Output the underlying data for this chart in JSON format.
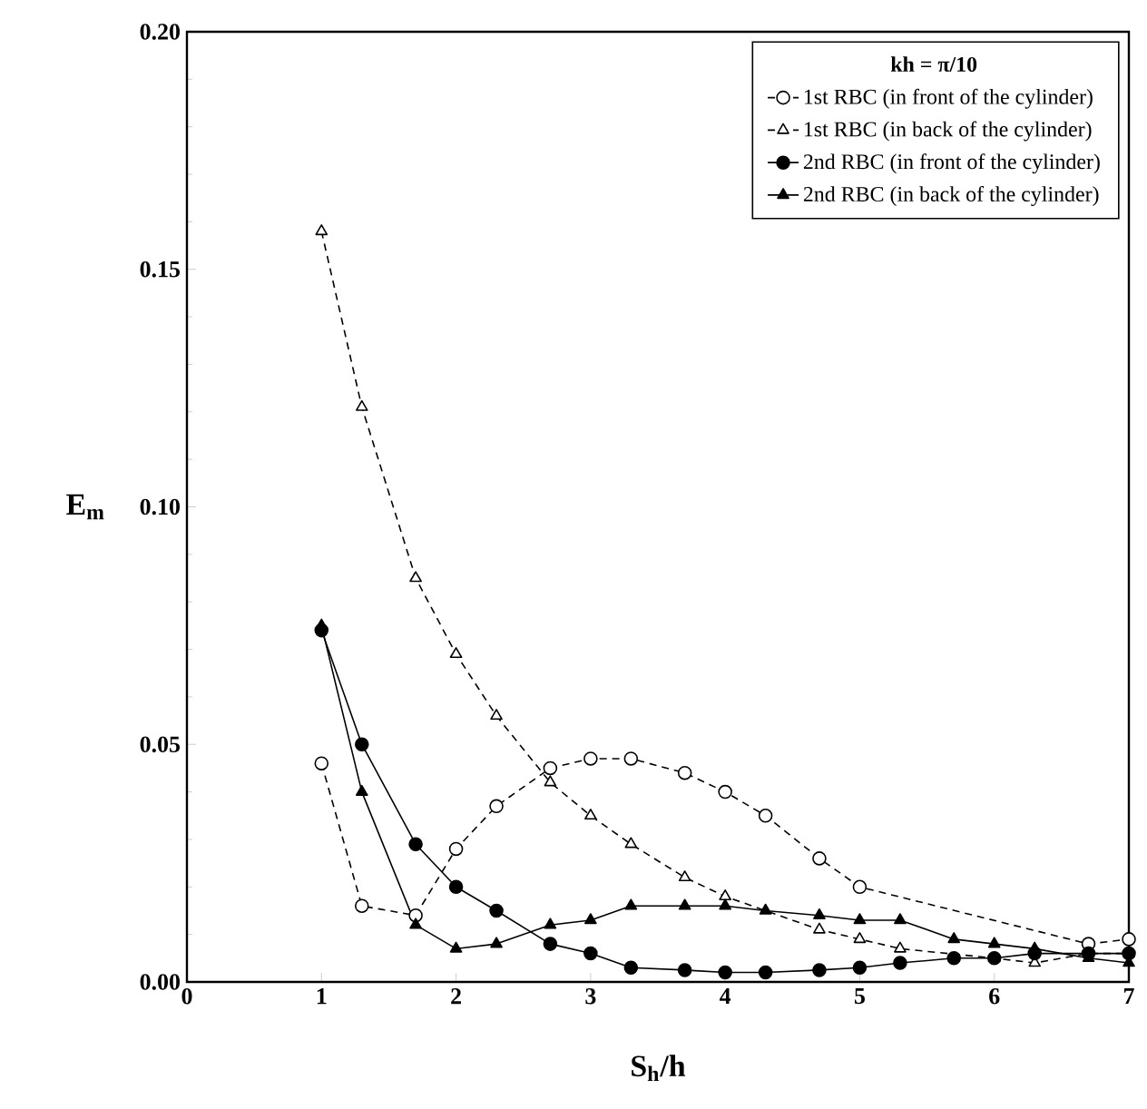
{
  "chart_data": {
    "type": "line",
    "xlabel": "S$_{h}$/h",
    "ylabel": "E$_{m}$",
    "legend_title": "kh = π/10",
    "legend": "top right",
    "grid": false,
    "xlim": [
      0,
      7
    ],
    "ylim": [
      0,
      0.2
    ],
    "xticks": [
      0,
      1,
      2,
      3,
      4,
      5,
      6,
      7
    ],
    "yticks": [
      {
        "value": 0,
        "label": "0.00"
      },
      {
        "value": 0.05,
        "label": "0.05"
      },
      {
        "value": 0.1,
        "label": "0.10"
      },
      {
        "value": 0.15,
        "label": "0.15"
      },
      {
        "value": 0.2,
        "label": "0.20"
      }
    ],
    "series": [
      {
        "name": "1st RBC (in front of the cylinder)",
        "color": "#000000",
        "marker": "circle",
        "line_style": "dashed",
        "x": [
          1,
          1.3,
          1.7,
          2,
          2.3,
          2.7,
          3,
          3.3,
          3.7,
          4,
          4.3,
          4.7,
          5,
          6.7,
          7
        ],
        "values": [
          0.046,
          0.016,
          0.014,
          0.028,
          0.037,
          0.045,
          0.047,
          0.047,
          0.044,
          0.04,
          0.035,
          0.026,
          0.02,
          0.008,
          0.009
        ]
      },
      {
        "name": "1st RBC (in back of the cylinder)",
        "color": "#000000",
        "marker": "triangle",
        "line_style": "dashed",
        "x": [
          1,
          1.3,
          1.7,
          2,
          2.3,
          2.7,
          3,
          3.3,
          3.7,
          4,
          4.7,
          5,
          5.3,
          6,
          6.3,
          6.7,
          7
        ],
        "values": [
          0.158,
          0.121,
          0.085,
          0.069,
          0.056,
          0.042,
          0.035,
          0.029,
          0.022,
          0.018,
          0.011,
          0.009,
          0.007,
          0.005,
          0.004,
          0.006,
          0.006
        ]
      },
      {
        "name": "2nd RBC (in front of the cylinder)",
        "color": "#000000",
        "marker": "circle",
        "line_style": "solid",
        "x": [
          1,
          1.3,
          1.7,
          2,
          2.3,
          2.7,
          3,
          3.3,
          3.7,
          4,
          4.3,
          4.7,
          5,
          5.3,
          5.7,
          6,
          6.3,
          6.7,
          7
        ],
        "values": [
          0.074,
          0.05,
          0.029,
          0.02,
          0.015,
          0.008,
          0.006,
          0.003,
          0.0025,
          0.002,
          0.002,
          0.0025,
          0.003,
          0.004,
          0.005,
          0.005,
          0.006,
          0.006,
          0.006
        ]
      },
      {
        "name": "2nd RBC (in back of the cylinder)",
        "color": "#000000",
        "marker": "triangle",
        "line_style": "solid",
        "x": [
          1,
          1.3,
          1.7,
          2,
          2.3,
          2.7,
          3,
          3.3,
          3.7,
          4,
          4.3,
          4.7,
          5,
          5.3,
          5.7,
          6,
          6.3,
          6.7,
          7
        ],
        "values": [
          0.075,
          0.04,
          0.012,
          0.007,
          0.008,
          0.012,
          0.013,
          0.016,
          0.016,
          0.016,
          0.015,
          0.014,
          0.013,
          0.013,
          0.009,
          0.008,
          0.007,
          0.005,
          0.004
        ]
      }
    ]
  }
}
